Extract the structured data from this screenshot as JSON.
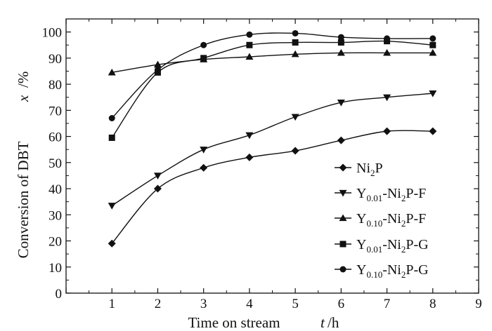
{
  "chart_data": {
    "type": "line",
    "xlabel": "Time on stream",
    "xlabel_var": "t",
    "xlabel_unit": "/h",
    "ylabel": "Conversion of DBT",
    "ylabel_var": "x",
    "ylabel_unit": "/%",
    "xlim": [
      0,
      9
    ],
    "ylim": [
      0,
      105
    ],
    "x_ticks": [
      0,
      1,
      2,
      3,
      4,
      5,
      6,
      7,
      8,
      9
    ],
    "y_ticks": [
      0,
      10,
      20,
      30,
      40,
      50,
      60,
      70,
      80,
      90,
      100
    ],
    "grid": false,
    "legend_position": "right",
    "series": [
      {
        "name": "Ni2P",
        "label_parts": {
          "base": "Ni",
          "sub1": "2",
          "rest": "P",
          "sub2": "",
          "suffix": ""
        },
        "marker": "diamond",
        "x": [
          1,
          2,
          3,
          4,
          5,
          6,
          7,
          8
        ],
        "values": [
          19,
          40,
          48,
          52,
          54.5,
          58.5,
          62,
          62
        ]
      },
      {
        "name": "Y0.01-Ni2P-F",
        "label_parts": {
          "base": "Y",
          "sub1": "0.01",
          "rest": "-Ni",
          "sub2": "2",
          "suffix": "P-F"
        },
        "marker": "triangle-down",
        "x": [
          1,
          2,
          3,
          4,
          5,
          6,
          7,
          8
        ],
        "values": [
          33.5,
          45,
          55,
          60.5,
          67.5,
          73,
          75,
          76.5
        ]
      },
      {
        "name": "Y0.10-Ni2P-F",
        "label_parts": {
          "base": "Y",
          "sub1": "0.10",
          "rest": "-Ni",
          "sub2": "2",
          "suffix": "P-F"
        },
        "marker": "triangle-up",
        "x": [
          1,
          2,
          3,
          4,
          5,
          6,
          7,
          8
        ],
        "values": [
          84.5,
          87.5,
          89.5,
          90.5,
          91.5,
          92,
          92,
          92
        ]
      },
      {
        "name": "Y0.01-Ni2P-G",
        "label_parts": {
          "base": "Y",
          "sub1": "0.01",
          "rest": "-Ni",
          "sub2": "2",
          "suffix": "P-G"
        },
        "marker": "square",
        "x": [
          1,
          2,
          3,
          4,
          5,
          6,
          7,
          8
        ],
        "values": [
          59.5,
          84.5,
          90,
          95,
          96,
          96,
          96.5,
          95
        ]
      },
      {
        "name": "Y0.10-Ni2P-G",
        "label_parts": {
          "base": "Y",
          "sub1": "0.10",
          "rest": "-Ni",
          "sub2": "2",
          "suffix": "P-G"
        },
        "marker": "circle",
        "x": [
          1,
          2,
          3,
          4,
          5,
          6,
          7,
          8
        ],
        "values": [
          67,
          85.5,
          95,
          99,
          99.5,
          98,
          97.5,
          97.5
        ]
      }
    ]
  }
}
